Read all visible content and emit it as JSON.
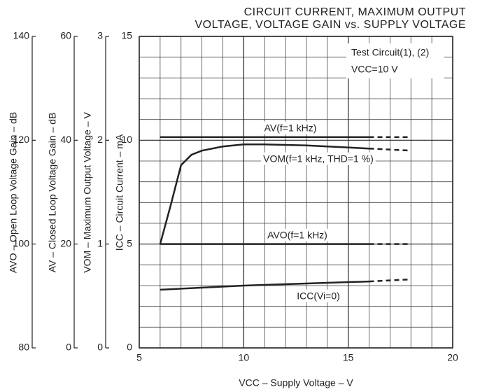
{
  "chart_data": {
    "type": "line",
    "title": [
      "CIRCUIT CURRENT, MAXIMUM OUTPUT",
      "VOLTAGE, VOLTAGE GAIN vs. SUPPLY VOLTAGE"
    ],
    "annotations": [
      "Test Circuit(1), (2)",
      "VCC=10 V"
    ],
    "xlabel": "VCC – Supply Voltage – V",
    "xlim": [
      5,
      20
    ],
    "xticks": [
      5,
      10,
      15,
      20
    ],
    "ylabel": "ICC – Circuit Current – mA",
    "ylim": [
      0,
      15
    ],
    "yticks": [
      0,
      5,
      10,
      15
    ],
    "extra_axes": [
      {
        "label": "VOM – Maximum Output Voltage – V",
        "lim": [
          0,
          3
        ],
        "ticks": [
          0,
          1,
          2,
          3
        ]
      },
      {
        "label": "AV – Closed Loop Voltage Gain – dB",
        "lim": [
          0,
          60
        ],
        "ticks": [
          0,
          20,
          40,
          60
        ]
      },
      {
        "label": "AVO – Open Loop Voltage Gain – dB",
        "lim": [
          80,
          140
        ],
        "ticks": [
          80,
          100,
          120,
          140
        ]
      }
    ],
    "grid": true,
    "dashed_after": 16,
    "series": [
      {
        "name": "AV(f=1 kHz)",
        "axis": 1,
        "color": "#222222",
        "x": [
          6,
          16,
          18
        ],
        "values": [
          40.6,
          40.6,
          40.6
        ]
      },
      {
        "name": "VOM(f=1 kHz, THD=1 %)",
        "axis": 0,
        "color": "#222222",
        "x": [
          6,
          6.5,
          7,
          7.5,
          8,
          9,
          10,
          11,
          13,
          16,
          18
        ],
        "values": [
          1.0,
          1.37,
          1.76,
          1.86,
          1.9,
          1.94,
          1.96,
          1.96,
          1.95,
          1.92,
          1.9
        ]
      },
      {
        "name": "AVO(f=1 kHz)",
        "axis": 2,
        "color": "#222222",
        "x": [
          6,
          16,
          18
        ],
        "values": [
          100,
          100,
          100
        ]
      },
      {
        "name": "ICC(Vi=0)",
        "axis": null,
        "color": "#222222",
        "x": [
          6,
          10,
          13,
          16,
          18
        ],
        "values": [
          2.8,
          3.0,
          3.1,
          3.2,
          3.3
        ]
      }
    ]
  }
}
